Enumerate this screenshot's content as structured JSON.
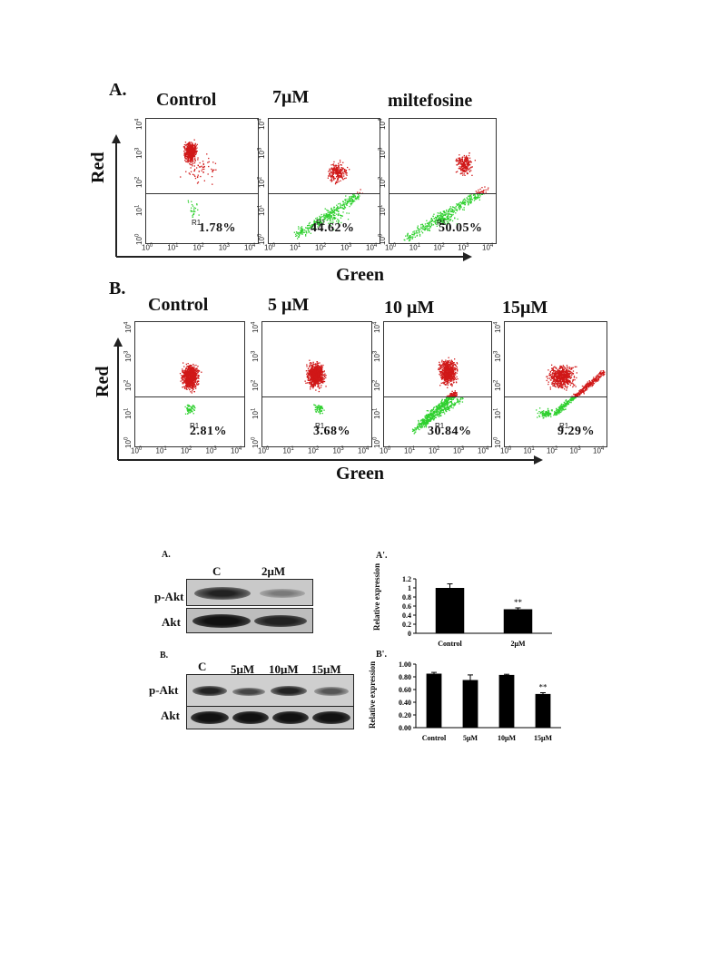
{
  "section_a": {
    "letter": "A.",
    "conditions": [
      "Control",
      "7μM",
      "miltefosine"
    ],
    "percents": [
      "1.78%",
      "44.62%",
      "50.05%"
    ],
    "gate_label": "R1",
    "y_title": "Red",
    "x_title": "Green"
  },
  "section_b": {
    "letter": "B.",
    "conditions": [
      "Control",
      "5 μM",
      "10 μM",
      "15μM"
    ],
    "percents": [
      "2.81%",
      "3.68%",
      "30.84%",
      "9.29%"
    ],
    "gate_label": "R1",
    "y_title": "Red",
    "x_title": "Green"
  },
  "log_ticks": {
    "base": "10",
    "exponents": [
      "0",
      "1",
      "2",
      "3",
      "4"
    ]
  },
  "colors": {
    "red_dots": "#d01818",
    "green_dots": "#2fd02f",
    "bars": "#000000"
  },
  "western_a": {
    "letter": "A.",
    "lanes": [
      "C",
      "2μM"
    ],
    "rows": [
      "p-Akt",
      "Akt"
    ]
  },
  "western_b": {
    "letter": "B.",
    "lanes": [
      "C",
      "5μM",
      "10μM",
      "15μM"
    ],
    "rows": [
      "p-Akt",
      "Akt"
    ]
  },
  "chart_data": [
    {
      "type": "bar",
      "panel": "A'.",
      "categories": [
        "Control",
        "2μM"
      ],
      "values": [
        1.0,
        0.53
      ],
      "errors": [
        0.09,
        0.03
      ],
      "significance": [
        "",
        "**"
      ],
      "ylabel": "Relative expression",
      "ylim": [
        0,
        1.2
      ],
      "yticks": [
        "0",
        "0.2",
        "0.4",
        "0.6",
        "0.8",
        "1",
        "1.2"
      ]
    },
    {
      "type": "bar",
      "panel": "B'.",
      "categories": [
        "Control",
        "5μM",
        "10μM",
        "15μM"
      ],
      "values": [
        0.85,
        0.75,
        0.83,
        0.53
      ],
      "errors": [
        0.02,
        0.08,
        0.01,
        0.02
      ],
      "significance": [
        "",
        "",
        "",
        "**"
      ],
      "ylabel": "Relative expression",
      "ylim": [
        0,
        1.0
      ],
      "yticks": [
        "0.00",
        "0.20",
        "0.40",
        "0.60",
        "0.80",
        "1.00"
      ]
    }
  ]
}
